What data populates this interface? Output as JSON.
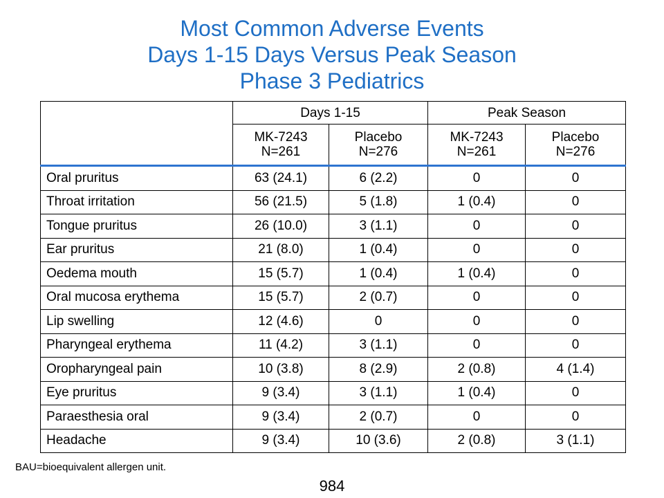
{
  "title": {
    "line1": "Most Common Adverse Events",
    "line2": "Days 1-15 Days Versus Peak Season",
    "line3": "Phase 3 Pediatrics"
  },
  "table": {
    "groups": [
      "Days 1-15",
      "Peak Season"
    ],
    "subheaders": [
      {
        "name": "MK-7243",
        "n": "N=261"
      },
      {
        "name": "Placebo",
        "n": "N=276"
      },
      {
        "name": "MK-7243",
        "n": "N=261"
      },
      {
        "name": "Placebo",
        "n": "N=276"
      }
    ],
    "rows": [
      {
        "event": "Oral pruritus",
        "values": [
          "63 (24.1)",
          "6 (2.2)",
          "0",
          "0"
        ]
      },
      {
        "event": "Throat irritation",
        "values": [
          "56 (21.5)",
          "5 (1.8)",
          "1 (0.4)",
          "0"
        ]
      },
      {
        "event": "Tongue pruritus",
        "values": [
          "26 (10.0)",
          "3 (1.1)",
          "0",
          "0"
        ]
      },
      {
        "event": "Ear pruritus",
        "values": [
          "21 (8.0)",
          "1 (0.4)",
          "0",
          "0"
        ]
      },
      {
        "event": "Oedema mouth",
        "values": [
          "15 (5.7)",
          "1 (0.4)",
          "1 (0.4)",
          "0"
        ]
      },
      {
        "event": "Oral mucosa erythema",
        "values": [
          "15 (5.7)",
          "2 (0.7)",
          "0",
          "0"
        ]
      },
      {
        "event": "Lip swelling",
        "values": [
          "12 (4.6)",
          "0",
          "0",
          "0"
        ]
      },
      {
        "event": "Pharyngeal erythema",
        "values": [
          "11 (4.2)",
          "3 (1.1)",
          "0",
          "0"
        ]
      },
      {
        "event": "Oropharyngeal pain",
        "values": [
          "10 (3.8)",
          "8 (2.9)",
          "2 (0.8)",
          "4 (1.4)"
        ]
      },
      {
        "event": "Eye pruritus",
        "values": [
          "9 (3.4)",
          "3 (1.1)",
          "1 (0.4)",
          "0"
        ]
      },
      {
        "event": "Paraesthesia oral",
        "values": [
          "9 (3.4)",
          "2 (0.7)",
          "0",
          "0"
        ]
      },
      {
        "event": "Headache",
        "values": [
          "9 (3.4)",
          "10 (3.6)",
          "2 (0.8)",
          "3 (1.1)"
        ]
      }
    ]
  },
  "footnote": "BAU=bioequivalent allergen unit.",
  "page_number": "984"
}
